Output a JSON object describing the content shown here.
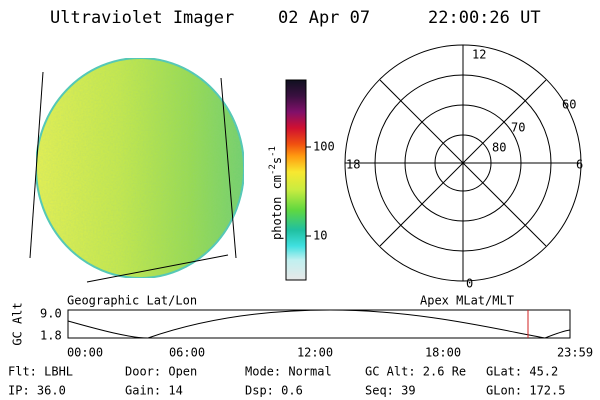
{
  "header": {
    "instrument": "Ultraviolet Imager",
    "date": "02 Apr 07",
    "time": "22:00:26 UT"
  },
  "image_panel": {
    "label": "Geographic Lat/Lon"
  },
  "colorbar": {
    "label_base": "photon cm",
    "exp1": "-2",
    "mid": "s",
    "exp2": "-1",
    "ticks": [
      "100",
      "10"
    ]
  },
  "polar_panel": {
    "label": "Apex MLat/MLT",
    "mlt_labels": [
      "12",
      "18",
      "6",
      "0"
    ],
    "lat_labels": [
      "60",
      "70",
      "80"
    ]
  },
  "altitude_panel": {
    "ylabel": "GC Alt",
    "yticks": [
      "9.0",
      "1.8"
    ],
    "xticks": [
      "00:00",
      "06:00",
      "12:00",
      "18:00",
      "23:59"
    ]
  },
  "status": {
    "rows": [
      [
        "Flt: LBHL",
        "Door: Open",
        "Mode: Normal",
        "GC Alt: 2.6 Re",
        "GLat: 45.2"
      ],
      [
        "IP: 36.0",
        "Gain: 14",
        "Dsp:   0.6",
        "Seq: 39",
        "GLon: 172.5"
      ]
    ]
  }
}
